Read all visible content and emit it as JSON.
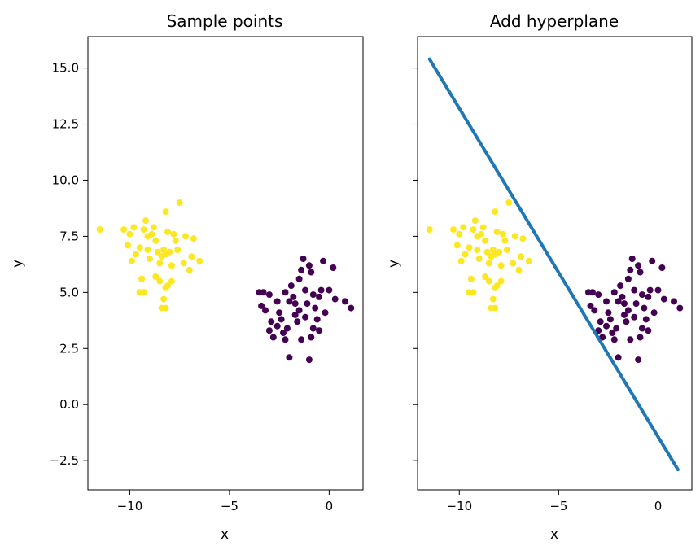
{
  "chart_data": [
    {
      "type": "scatter",
      "title": "Sample points",
      "xlabel": "x",
      "ylabel": "y",
      "xlim": [
        -12.1,
        1.7
      ],
      "ylim": [
        -3.8,
        16.4
      ],
      "x_ticks": [
        -10,
        -5,
        0
      ],
      "x_tick_labels": [
        "−10",
        "−5",
        "0"
      ],
      "y_ticks": [
        -2.5,
        0.0,
        2.5,
        5.0,
        7.5,
        10.0,
        12.5,
        15.0
      ],
      "y_tick_labels": [
        "−2.5",
        "0.0",
        "2.5",
        "5.0",
        "7.5",
        "10.0",
        "12.5",
        "15.0"
      ],
      "grid": false,
      "series": [
        {
          "color": "#fde725",
          "points": [
            [
              -11.5,
              7.8
            ],
            [
              -10.3,
              7.8
            ],
            [
              -10.1,
              7.1
            ],
            [
              -10.0,
              7.6
            ],
            [
              -9.8,
              7.9
            ],
            [
              -9.9,
              6.4
            ],
            [
              -9.5,
              7.0
            ],
            [
              -9.3,
              7.8
            ],
            [
              -9.2,
              8.2
            ],
            [
              -9.1,
              7.5
            ],
            [
              -9.0,
              6.5
            ],
            [
              -8.9,
              7.6
            ],
            [
              -8.8,
              7.9
            ],
            [
              -8.7,
              7.3
            ],
            [
              -8.6,
              6.8
            ],
            [
              -8.5,
              6.3
            ],
            [
              -8.4,
              6.6
            ],
            [
              -8.3,
              6.9
            ],
            [
              -8.2,
              6.7
            ],
            [
              -8.1,
              7.7
            ],
            [
              -8.0,
              6.8
            ],
            [
              -7.9,
              6.2
            ],
            [
              -7.8,
              7.6
            ],
            [
              -7.7,
              7.3
            ],
            [
              -7.6,
              6.9
            ],
            [
              -7.5,
              9.0
            ],
            [
              -7.3,
              6.3
            ],
            [
              -7.2,
              7.5
            ],
            [
              -7.0,
              6.0
            ],
            [
              -6.9,
              6.6
            ],
            [
              -6.8,
              7.4
            ],
            [
              -6.5,
              6.4
            ],
            [
              -8.2,
              8.6
            ],
            [
              -8.7,
              5.7
            ],
            [
              -8.5,
              5.5
            ],
            [
              -8.2,
              5.2
            ],
            [
              -8.1,
              5.3
            ],
            [
              -7.9,
              5.5
            ],
            [
              -8.3,
              4.7
            ],
            [
              -8.4,
              4.3
            ],
            [
              -8.2,
              4.3
            ],
            [
              -9.3,
              5.0
            ],
            [
              -9.5,
              5.0
            ],
            [
              -9.4,
              5.6
            ],
            [
              -9.7,
              6.7
            ],
            [
              -9.1,
              6.9
            ]
          ]
        },
        {
          "color": "#440154",
          "points": [
            [
              -3.5,
              5.0
            ],
            [
              -3.3,
              5.0
            ],
            [
              -3.4,
              4.4
            ],
            [
              -3.2,
              4.2
            ],
            [
              -3.0,
              4.9
            ],
            [
              -2.9,
              3.7
            ],
            [
              -3.0,
              3.3
            ],
            [
              -2.8,
              3.0
            ],
            [
              -2.6,
              3.5
            ],
            [
              -2.5,
              4.1
            ],
            [
              -2.4,
              3.8
            ],
            [
              -2.3,
              3.2
            ],
            [
              -2.2,
              2.9
            ],
            [
              -2.1,
              3.4
            ],
            [
              -2.0,
              4.6
            ],
            [
              -2.2,
              5.0
            ],
            [
              -1.9,
              5.3
            ],
            [
              -1.8,
              4.8
            ],
            [
              -1.7,
              4.0
            ],
            [
              -1.6,
              3.7
            ],
            [
              -1.5,
              5.6
            ],
            [
              -1.4,
              6.0
            ],
            [
              -1.3,
              6.5
            ],
            [
              -1.2,
              5.1
            ],
            [
              -1.1,
              4.5
            ],
            [
              -1.0,
              6.2
            ],
            [
              -0.9,
              5.9
            ],
            [
              -0.8,
              4.9
            ],
            [
              -0.7,
              4.3
            ],
            [
              -0.6,
              3.8
            ],
            [
              -0.5,
              3.3
            ],
            [
              -0.4,
              5.1
            ],
            [
              -0.3,
              6.4
            ],
            [
              -0.2,
              4.1
            ],
            [
              0.0,
              5.1
            ],
            [
              0.2,
              6.1
            ],
            [
              0.3,
              4.7
            ],
            [
              0.8,
              4.6
            ],
            [
              1.1,
              4.3
            ],
            [
              -0.8,
              3.4
            ],
            [
              -0.9,
              3.0
            ],
            [
              -1.4,
              2.9
            ],
            [
              -1.0,
              2.0
            ],
            [
              -2.0,
              2.1
            ],
            [
              -1.2,
              3.9
            ],
            [
              -2.6,
              4.6
            ],
            [
              -1.7,
              4.5
            ],
            [
              -1.5,
              4.2
            ],
            [
              -0.5,
              4.8
            ]
          ]
        }
      ]
    },
    {
      "type": "scatter",
      "title": "Add hyperplane",
      "xlabel": "x",
      "ylabel": "y",
      "xlim": [
        -12.1,
        1.7
      ],
      "ylim": [
        -3.8,
        16.4
      ],
      "x_ticks": [
        -10,
        -5,
        0
      ],
      "x_tick_labels": [
        "−10",
        "−5",
        "0"
      ],
      "y_ticks": [
        -2.5,
        0.0,
        2.5,
        5.0,
        7.5,
        10.0,
        12.5,
        15.0
      ],
      "grid": false,
      "show_y_tick_labels": false,
      "same_points_as_panel": 0,
      "line": {
        "color": "#1f77b4",
        "x": [
          -11.5,
          1.0
        ],
        "y": [
          15.4,
          -2.9
        ]
      }
    }
  ]
}
